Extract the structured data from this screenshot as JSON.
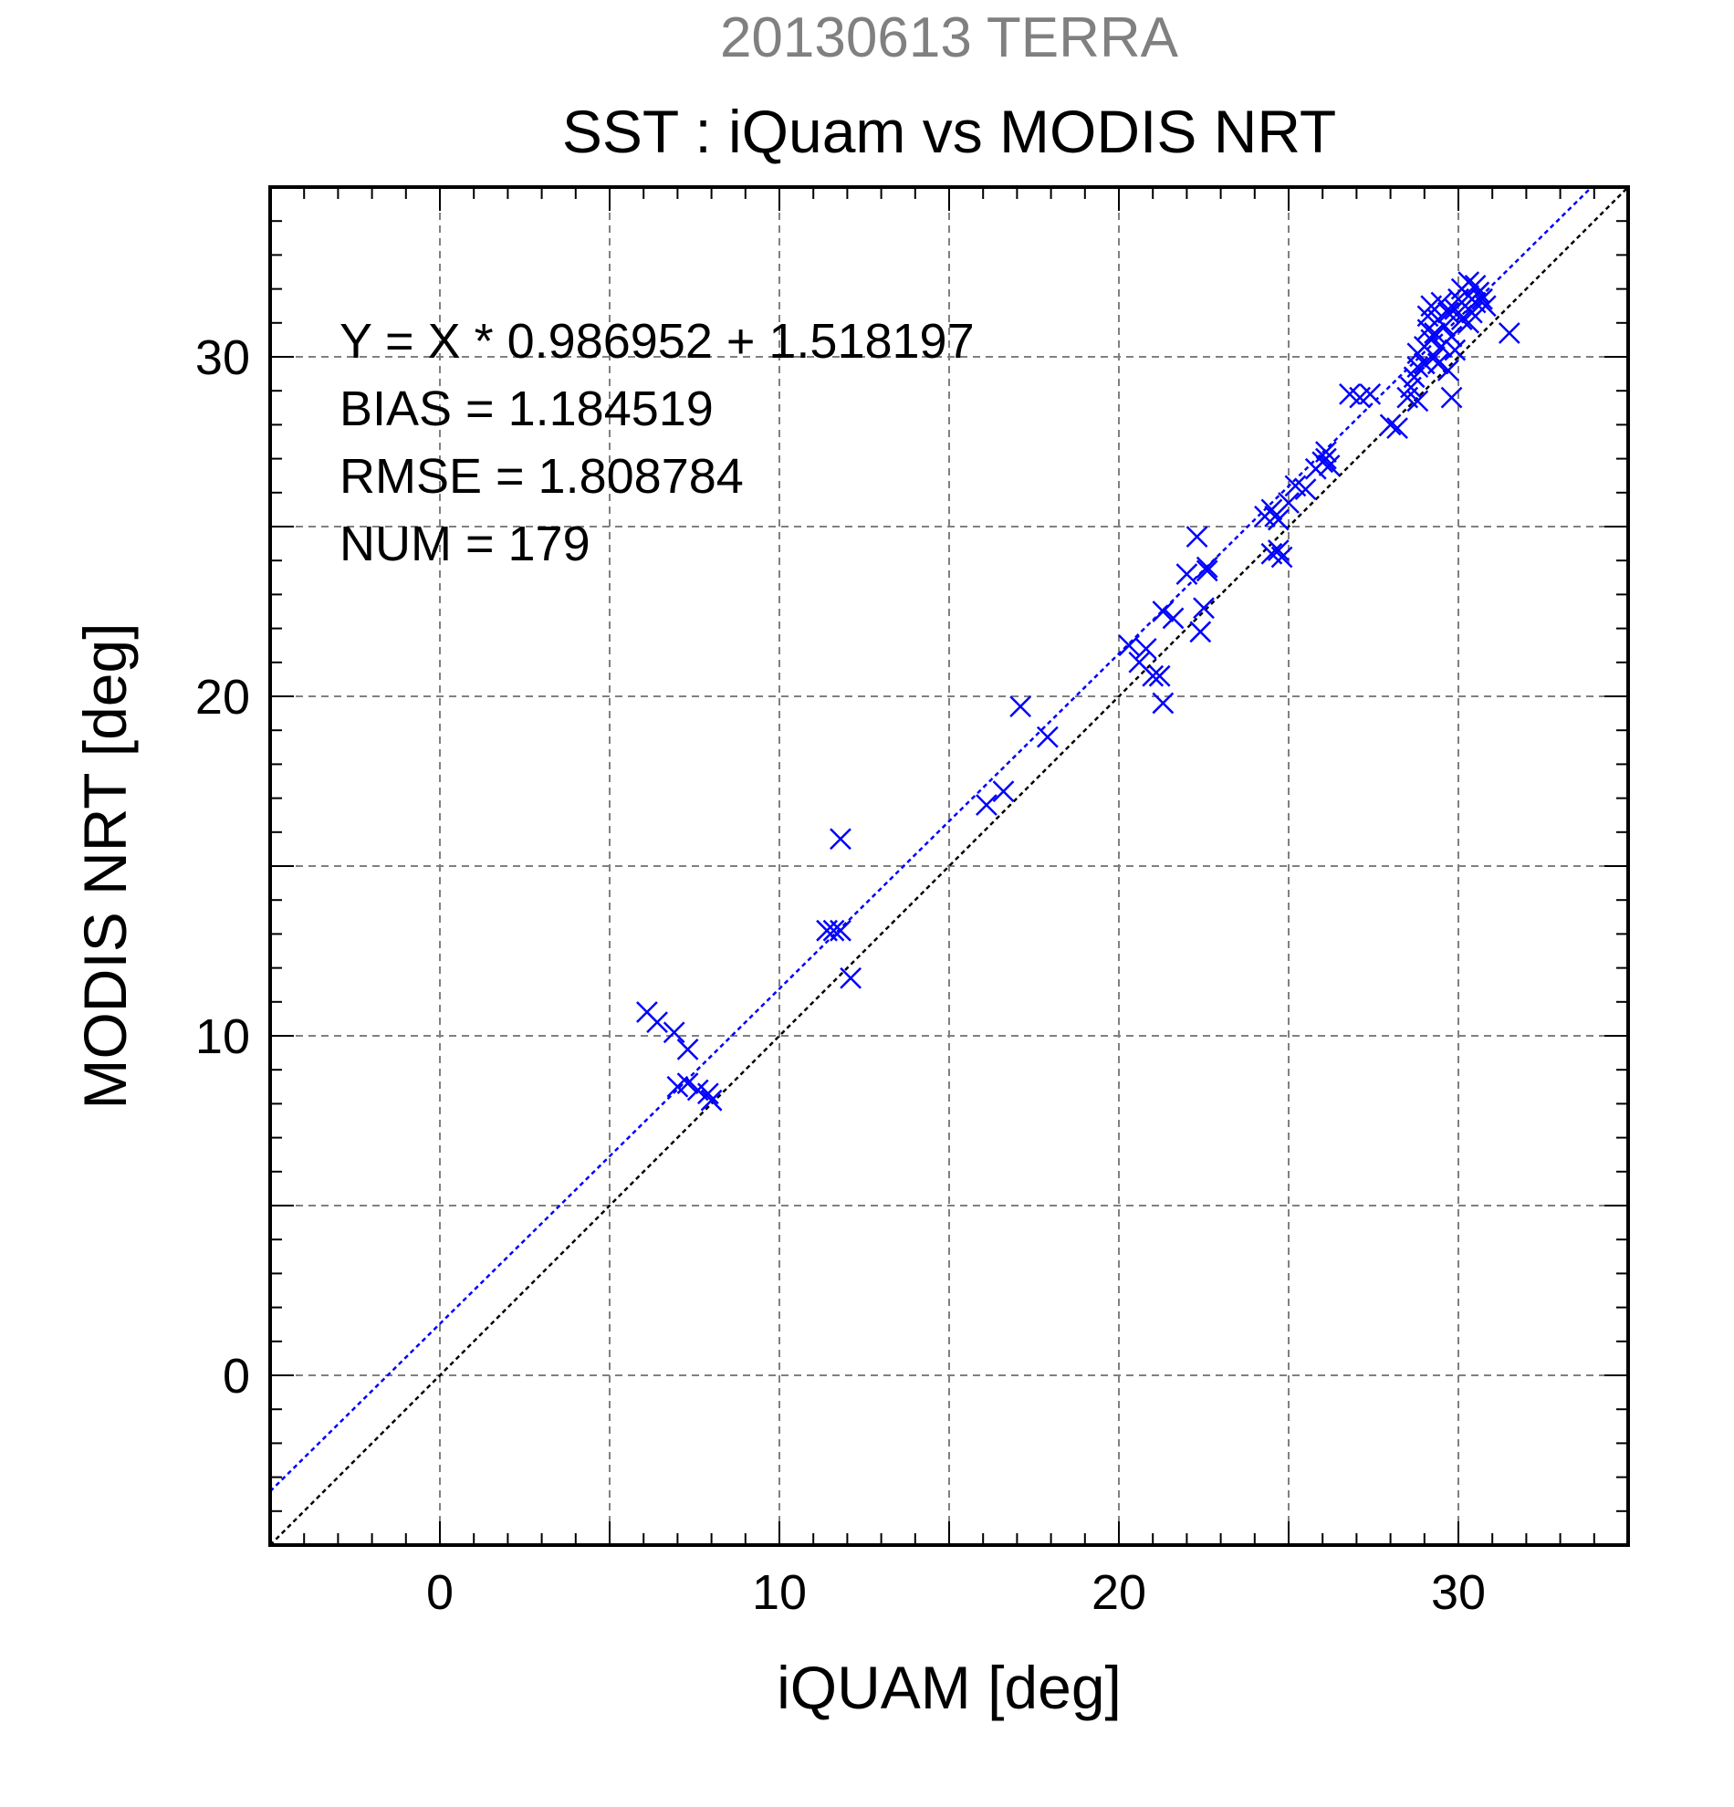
{
  "chart_data": {
    "type": "scatter",
    "suptitle": "20130613 TERRA",
    "title": "SST : iQuam vs MODIS NRT",
    "xlabel": "iQUAM [deg]",
    "ylabel": "MODIS NRT [deg]",
    "xlim": [
      -5,
      35
    ],
    "ylim": [
      -5,
      35
    ],
    "xticks": [
      0,
      10,
      20,
      30
    ],
    "yticks": [
      0,
      10,
      20,
      30
    ],
    "xtick_labels": [
      "0",
      "10",
      "20",
      "30"
    ],
    "ytick_labels": [
      "0",
      "10",
      "20",
      "30"
    ],
    "grid": true,
    "marker": "x",
    "colors": {
      "points": "#0000ff",
      "fit_line": "#0000ff",
      "identity_line": "#000000",
      "suptitle": "#808080",
      "grid": "#808080"
    },
    "fit": {
      "slope": 0.986952,
      "intercept": 1.518197
    },
    "identity": {
      "slope": 1,
      "intercept": 0
    },
    "annotations": [
      "Y = X * 0.986952 + 1.518197",
      "BIAS = 1.184519",
      "RMSE = 1.808784",
      "NUM = 179"
    ],
    "points": [
      [
        6.1,
        10.7
      ],
      [
        6.4,
        10.4
      ],
      [
        6.9,
        10.1
      ],
      [
        7.3,
        9.6
      ],
      [
        7.0,
        8.5
      ],
      [
        7.3,
        8.6
      ],
      [
        7.6,
        8.4
      ],
      [
        7.9,
        8.3
      ],
      [
        8.0,
        8.1
      ],
      [
        11.4,
        13.1
      ],
      [
        11.6,
        13.1
      ],
      [
        11.8,
        13.1
      ],
      [
        11.8,
        15.8
      ],
      [
        12.1,
        11.7
      ],
      [
        16.1,
        16.8
      ],
      [
        16.6,
        17.2
      ],
      [
        17.1,
        19.7
      ],
      [
        17.9,
        18.8
      ],
      [
        20.3,
        21.5
      ],
      [
        20.6,
        21.0
      ],
      [
        20.8,
        21.4
      ],
      [
        21.0,
        20.6
      ],
      [
        21.2,
        20.6
      ],
      [
        21.3,
        19.8
      ],
      [
        21.3,
        22.5
      ],
      [
        21.6,
        22.3
      ],
      [
        22.0,
        23.6
      ],
      [
        22.3,
        24.7
      ],
      [
        22.4,
        21.9
      ],
      [
        22.5,
        22.6
      ],
      [
        22.6,
        23.7
      ],
      [
        22.6,
        23.8
      ],
      [
        24.3,
        25.3
      ],
      [
        24.5,
        25.5
      ],
      [
        24.6,
        25.3
      ],
      [
        24.7,
        25.2
      ],
      [
        24.5,
        24.2
      ],
      [
        24.7,
        24.3
      ],
      [
        24.8,
        24.1
      ],
      [
        25.0,
        25.7
      ],
      [
        25.2,
        26.2
      ],
      [
        25.5,
        26.1
      ],
      [
        25.8,
        26.7
      ],
      [
        26.0,
        26.9
      ],
      [
        26.1,
        27.0
      ],
      [
        26.1,
        27.2
      ],
      [
        26.2,
        26.8
      ],
      [
        26.8,
        28.9
      ],
      [
        27.1,
        28.8
      ],
      [
        27.4,
        28.9
      ],
      [
        28.0,
        28.0
      ],
      [
        28.2,
        27.9
      ],
      [
        28.5,
        28.8
      ],
      [
        28.6,
        29.1
      ],
      [
        28.7,
        29.4
      ],
      [
        28.8,
        28.7
      ],
      [
        28.8,
        29.7
      ],
      [
        28.8,
        30.1
      ],
      [
        29.0,
        29.8
      ],
      [
        29.0,
        30.3
      ],
      [
        29.1,
        30.8
      ],
      [
        29.1,
        31.2
      ],
      [
        29.2,
        30.5
      ],
      [
        29.2,
        31.5
      ],
      [
        29.3,
        30.0
      ],
      [
        29.3,
        30.7
      ],
      [
        29.4,
        31.1
      ],
      [
        29.4,
        29.8
      ],
      [
        29.5,
        31.6
      ],
      [
        29.5,
        30.3
      ],
      [
        29.6,
        30.9
      ],
      [
        29.7,
        31.3
      ],
      [
        29.7,
        29.6
      ],
      [
        29.8,
        28.8
      ],
      [
        29.8,
        30.6
      ],
      [
        29.9,
        31.4
      ],
      [
        30.0,
        31.7
      ],
      [
        30.1,
        31.1
      ],
      [
        30.1,
        32.0
      ],
      [
        30.2,
        31.5
      ],
      [
        30.3,
        32.2
      ],
      [
        30.3,
        31.8
      ],
      [
        30.4,
        31.3
      ],
      [
        30.5,
        32.1
      ],
      [
        30.5,
        31.6
      ],
      [
        30.6,
        31.9
      ],
      [
        30.7,
        31.7
      ],
      [
        30.8,
        31.5
      ],
      [
        30.3,
        31.0
      ],
      [
        29.9,
        30.2
      ],
      [
        31.5,
        30.7
      ]
    ]
  }
}
